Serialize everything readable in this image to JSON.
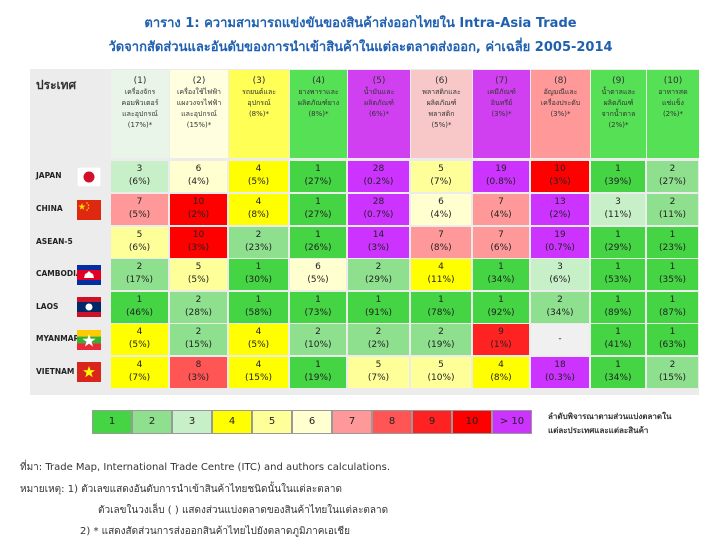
{
  "title": "ตาราง 1: ความสามารถแข่งขันของสินค้าส่งออกไทยใน Intra-Asia Trade",
  "subtitle": "วัดจากสัดส่วนและอันดับของการนำเข้าสินค้าในแต่ละตลาดส่งออก, ค่าเฉลี่ย 2005-2014",
  "header_country": "ประเทศ",
  "columns": [
    {
      "num": "(1)",
      "lines": [
        "เครื่องจักร",
        "คอมพิวเตอร์",
        "และอุปกรณ์",
        "(17%)*"
      ]
    },
    {
      "num": "(2)",
      "lines": [
        "เครื่องใช้ไฟฟ้า",
        "แผงวงจรไฟฟ้า",
        "และอุปกรณ์",
        "(15%)*"
      ]
    },
    {
      "num": "(3)",
      "lines": [
        "รถยนต์และ",
        "อุปกรณ์",
        "(8%)*"
      ]
    },
    {
      "num": "(4)",
      "lines": [
        "ยางพาราและ",
        "ผลิตภัณฑ์ยาง",
        "(8%)*"
      ]
    },
    {
      "num": "(5)",
      "lines": [
        "น้ำมันและ",
        "ผลิตภัณฑ์",
        "(6%)*"
      ]
    },
    {
      "num": "(6)",
      "lines": [
        "พลาสติกและ",
        "ผลิตภัณฑ์",
        "พลาสติก",
        "(5%)*"
      ]
    },
    {
      "num": "(7)",
      "lines": [
        "เคมีภัณฑ์",
        "อินทรีย์",
        "(3%)*"
      ]
    },
    {
      "num": "(8)",
      "lines": [
        "อัญมณีและ",
        "เครื่องประดับ",
        "(3%)*"
      ]
    },
    {
      "num": "(9)",
      "lines": [
        "น้ำตาลและ",
        "ผลิตภัณฑ์",
        "จากน้ำตาล",
        "(2%)*"
      ]
    },
    {
      "num": "(10)",
      "lines": [
        "อาหารสด",
        "แช่แข็ง",
        "(2%)*"
      ]
    }
  ],
  "chart_data": {
    "type": "table",
    "countries": [
      "JAPAN",
      "CHINA",
      "ASEAN-5",
      "CAMBODIA",
      "LAOS",
      "MYANMAR",
      "VIETNAM"
    ],
    "ranks": [
      [
        "3",
        "6",
        "4",
        "1",
        "28",
        "5",
        "19",
        "10",
        "1",
        "2"
      ],
      [
        "7",
        "10",
        "4",
        "1",
        "28",
        "6",
        "7",
        "13",
        "3",
        "2"
      ],
      [
        "5",
        "10",
        "2",
        "1",
        "14",
        "7",
        "7",
        "19",
        "1",
        "1"
      ],
      [
        "2",
        "5",
        "1",
        "6",
        "2",
        "4",
        "1",
        "3",
        "1",
        "1"
      ],
      [
        "1",
        "2",
        "1",
        "1",
        "1",
        "1",
        "1",
        "2",
        "1",
        "1"
      ],
      [
        "4",
        "2",
        "4",
        "2",
        "2",
        "2",
        "9",
        "-",
        "1",
        "1"
      ],
      [
        "4",
        "8",
        "4",
        "1",
        "5",
        "5",
        "4",
        "18",
        "1",
        "2"
      ]
    ],
    "shares": [
      [
        "(6%)",
        "(4%)",
        "(5%)",
        "(27%)",
        "(0.2%)",
        "(7%)",
        "(0.8%)",
        "(3%)",
        "(39%)",
        "(27%)"
      ],
      [
        "(5%)",
        "(2%)",
        "(8%)",
        "(27%)",
        "(0.7%)",
        "(4%)",
        "(4%)",
        "(2%)",
        "(11%)",
        "(11%)"
      ],
      [
        "(6%)",
        "(3%)",
        "(23%)",
        "(26%)",
        "(3%)",
        "(8%)",
        "(6%)",
        "(0.7%)",
        "(29%)",
        "(23%)"
      ],
      [
        "(17%)",
        "(5%)",
        "(30%)",
        "(5%)",
        "(29%)",
        "(11%)",
        "(34%)",
        "(6%)",
        "(53%)",
        "(35%)"
      ],
      [
        "(46%)",
        "(28%)",
        "(58%)",
        "(73%)",
        "(91%)",
        "(78%)",
        "(92%)",
        "(34%)",
        "(89%)",
        "(87%)"
      ],
      [
        "(5%)",
        "(15%)",
        "(5%)",
        "(10%)",
        "(2%)",
        "(19%)",
        "(1%)",
        "",
        "(41%)",
        "(63%)"
      ],
      [
        "(7%)",
        "(3%)",
        "(15%)",
        "(19%)",
        "(7%)",
        "(10%)",
        "(8%)",
        "(0.3%)",
        "(34%)",
        "(15%)"
      ]
    ],
    "legend": {
      "labels": [
        "1",
        "2",
        "3",
        "4",
        "5",
        "6",
        "7",
        "8",
        "9",
        "10",
        "> 10"
      ],
      "colors": [
        "#44d444",
        "#8ee08e",
        "#c8f0c8",
        "#ffff00",
        "#ffff99",
        "#ffffd0",
        "#ff9999",
        "#ff5555",
        "#ff2222",
        "#ff0000",
        "#cc33ff"
      ],
      "text_lines": [
        "ลำดับพิจารณาตามส่วนแบ่งตลาดใน",
        "แต่ละประเทศและแต่ละสินค้า"
      ]
    }
  },
  "notes": {
    "source": "ที่มา: Trade Map, International Trade Centre (ITC) and authors calculations.",
    "note1": "หมายเหตุ:  1) ตัวเลขแสดงอันดับการนำเข้าสินค้าไทยชนิดนั้นในแต่ละตลาด",
    "note1b": "ตัวเลขในวงเล็บ  (  ) แสดงส่วนแบ่งตลาดของสินค้าไทยในแต่ละตลาด",
    "note2": "2) * แสดงสัดส่วนการส่งออกสินค้าไทยไปยังตลาดภูมิภาคเอเชีย"
  }
}
